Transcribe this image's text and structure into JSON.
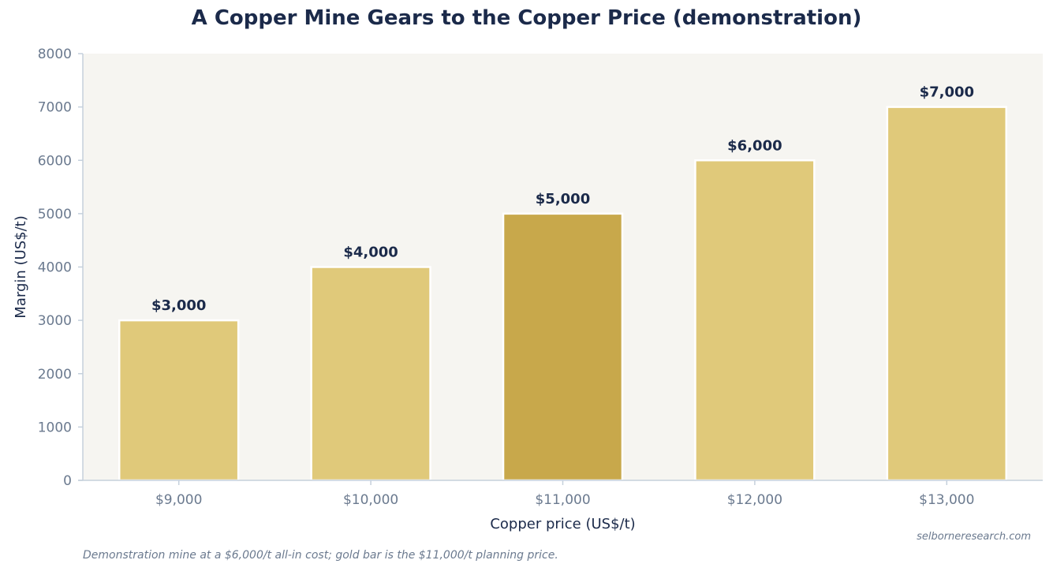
{
  "chart_data": {
    "type": "bar",
    "title": "A Copper Mine Gears to the Copper Price (demonstration)",
    "xlabel": "Copper price (US$/t)",
    "ylabel": "Margin (US$/t)",
    "categories": [
      "$9,000",
      "$10,000",
      "$11,000",
      "$12,000",
      "$13,000"
    ],
    "values": [
      3000,
      4000,
      5000,
      6000,
      7000
    ],
    "data_labels": [
      "$3,000",
      "$4,000",
      "$5,000",
      "$6,000",
      "$7,000"
    ],
    "highlight_index": 2,
    "ylim": [
      0,
      8000
    ],
    "yticks": [
      "0",
      "1000",
      "2000",
      "3000",
      "4000",
      "5000",
      "6000",
      "7000",
      "8000"
    ],
    "grid": false,
    "colors": {
      "bar": "#e0c97a",
      "highlight": "#c8a84b",
      "plot_background": "#f6f5f1",
      "axis": "#c5d0dc",
      "text": "#1b2a4a",
      "muted": "#6b7a8f"
    }
  },
  "attribution": "selborneresearch.com",
  "footnote": "Demonstration mine at a $6,000/t all-in cost; gold bar is the $11,000/t planning price."
}
